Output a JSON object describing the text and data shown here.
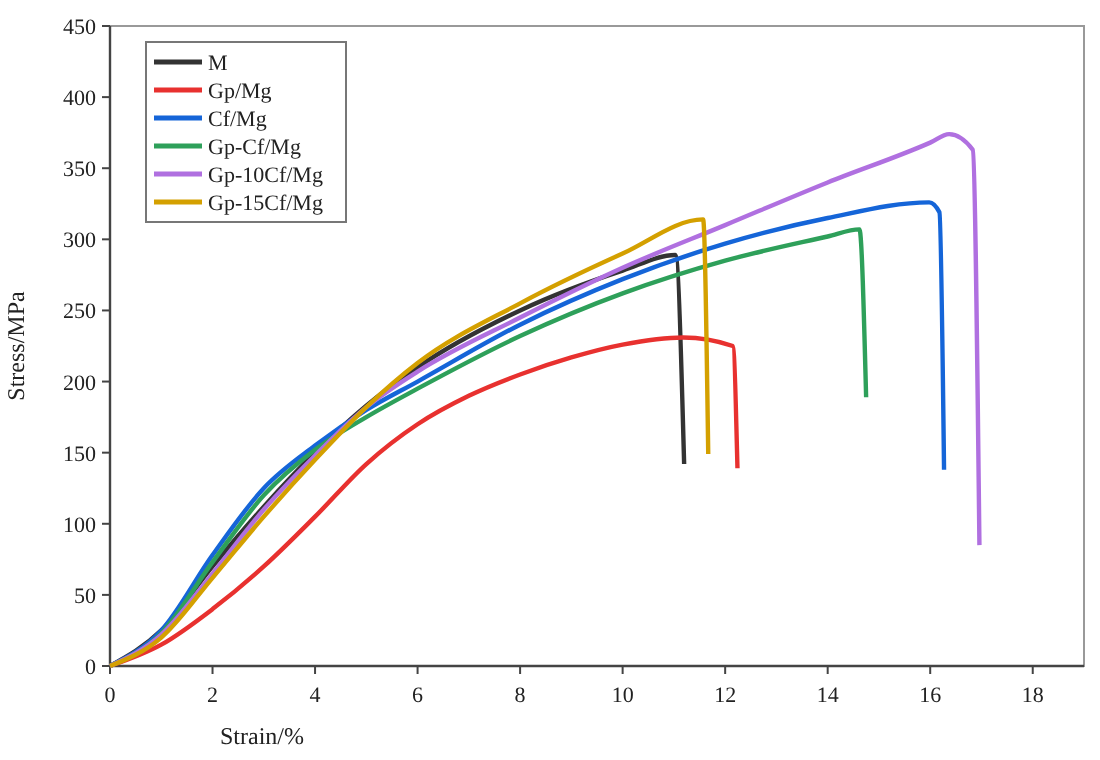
{
  "chart_data": {
    "type": "line",
    "xlabel": "Strain/%",
    "ylabel": "Stress/MPa",
    "xlim": [
      0,
      19
    ],
    "ylim": [
      0,
      450
    ],
    "xticks": [
      0,
      2,
      4,
      6,
      8,
      10,
      12,
      14,
      16,
      18
    ],
    "yticks": [
      0,
      50,
      100,
      150,
      200,
      250,
      300,
      350,
      400,
      450
    ],
    "grid": false,
    "legend": "top left",
    "marker": "none",
    "line_style": "solid",
    "series": [
      {
        "name": "M",
        "color": "#333333",
        "x": [
          0,
          1,
          2,
          3,
          4,
          5,
          6,
          8,
          10,
          11.03,
          11.2
        ],
        "values": [
          0,
          25,
          70,
          112,
          150,
          183,
          210,
          250,
          278,
          289,
          142
        ]
      },
      {
        "name": "Gp/Mg",
        "color": "#e8312f",
        "x": [
          0,
          1,
          2,
          3,
          4,
          5,
          6,
          7,
          8,
          9,
          10,
          11.18,
          12.15,
          12.24
        ],
        "values": [
          0,
          15,
          40,
          70,
          105,
          142,
          170,
          190,
          205,
          217,
          226,
          231,
          225,
          139
        ]
      },
      {
        "name": "Cf/Mg",
        "color": "#1565d8",
        "x": [
          0,
          1,
          2,
          3,
          4,
          5,
          6,
          8,
          10,
          12,
          14,
          15.98,
          16.18,
          16.27
        ],
        "values": [
          0,
          25,
          78,
          125,
          155,
          180,
          200,
          240,
          272,
          297,
          315,
          326,
          319,
          138
        ]
      },
      {
        "name": "Gp-Cf/Mg",
        "color": "#2ea05a",
        "x": [
          0,
          1,
          2,
          3,
          4,
          5,
          6,
          8,
          10,
          12,
          14,
          14.62,
          14.75
        ],
        "values": [
          0,
          23,
          73,
          120,
          152,
          175,
          195,
          232,
          262,
          285,
          302,
          307,
          189
        ]
      },
      {
        "name": "Gp-10Cf/Mg",
        "color": "#b070e0",
        "x": [
          0,
          1,
          2,
          3,
          4,
          5,
          6,
          8,
          10,
          12,
          14,
          16,
          16.37,
          16.83,
          16.96
        ],
        "values": [
          0,
          22,
          65,
          110,
          148,
          182,
          207,
          245,
          280,
          310,
          340,
          368,
          374,
          363,
          85
        ]
      },
      {
        "name": "Gp-15Cf/Mg",
        "color": "#d4a000",
        "x": [
          0,
          1,
          2,
          3,
          4,
          5,
          6,
          8,
          10,
          11.57,
          11.67
        ],
        "values": [
          0,
          20,
          62,
          105,
          145,
          182,
          213,
          255,
          290,
          314,
          149
        ]
      }
    ]
  }
}
